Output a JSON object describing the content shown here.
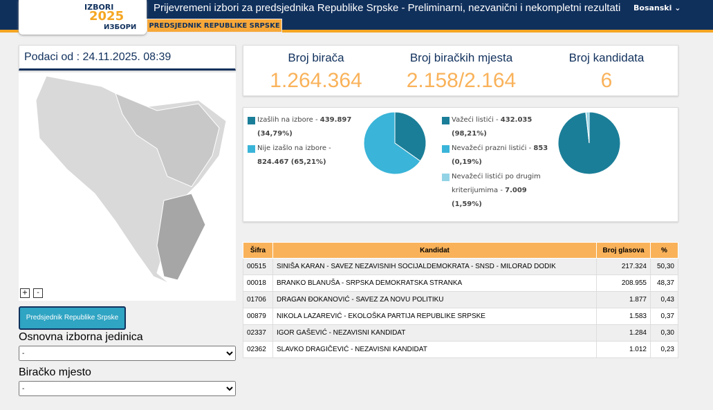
{
  "header": {
    "title": "Prijevremeni izbori za predsjednika Republike Srpske - Preliminarni, nezvanični i nekompletni rezultati",
    "language": "Bosanski",
    "tab": "PREDSJEDNIK REPUBLIKE SRPSKE",
    "logo_top": "IZBORI",
    "logo_year": "2025",
    "logo_bottom": "ИЗБОРИ"
  },
  "sidebar": {
    "updated": "Podaci od : 24.11.2025. 08:39",
    "zoom_in": "+",
    "zoom_out": "-",
    "button": "Predsjednik Republike Srpske",
    "unit_label": "Osnovna izborna jedinica",
    "unit_value": "-",
    "station_label": "Biračko mjesto",
    "station_value": "-"
  },
  "summary": [
    {
      "label": "Broj birača",
      "value": "1.264.364"
    },
    {
      "label": "Broj biračkih mjesta",
      "value": "2.158/2.164"
    },
    {
      "label": "Broj kandidata",
      "value": "6"
    }
  ],
  "turnout": {
    "slices": [
      {
        "label": "Izašlih na izbore - ",
        "count": "439.897",
        "percent_label": "(34,79%)",
        "percent": 34.79,
        "color": "#1b7e98"
      },
      {
        "label": "Nije izašlo na izbore - ",
        "count": "824.467",
        "percent_label": "(65,21%)",
        "percent": 65.21,
        "color": "#3ab4d8"
      }
    ]
  },
  "ballots": {
    "slices": [
      {
        "label": "Važeći listići - ",
        "count": "432.035",
        "percent_label": "(98,21%)",
        "percent": 98.21,
        "color": "#1b7e98"
      },
      {
        "label": "Nevažeći prazni listići - ",
        "count": "853",
        "percent_label": "(0,19%)",
        "percent": 0.19,
        "color": "#3ab4d8"
      },
      {
        "label": "Nevažeći listići po drugim kriterijumima - ",
        "count": "7.009",
        "percent_label": "(1,59%)",
        "percent": 1.59,
        "color": "#93d3e6"
      }
    ]
  },
  "table": {
    "columns": [
      "Šifra",
      "Kandidat",
      "Broj glasova",
      "%"
    ],
    "rows": [
      [
        "00515",
        "SINIŠA KARAN - SAVEZ NEZAVISNIH SOCIJALDEMOKRATA - SNSD - MILORAD DODIK",
        "217.324",
        "50,30"
      ],
      [
        "00018",
        "BRANKO BLANUŠA - SRPSKA DEMOKRATSKA STRANKA",
        "208.955",
        "48,37"
      ],
      [
        "01706",
        "DRAGAN ĐOKANOVIĆ - SAVEZ ZA NOVU POLITIKU",
        "1.877",
        "0,43"
      ],
      [
        "00879",
        "NIKOLA LAZAREVIĆ - EKOLOŠKA PARTIJA REPUBLIKE SRPSKE",
        "1.583",
        "0,37"
      ],
      [
        "02337",
        "IGOR GAŠEVIĆ - NEZAVISNI KANDIDAT",
        "1.284",
        "0,30"
      ],
      [
        "02362",
        "SLAVKO DRAGIČEVIĆ - NEZAVISNI KANDIDAT",
        "1.012",
        "0,23"
      ]
    ]
  }
}
